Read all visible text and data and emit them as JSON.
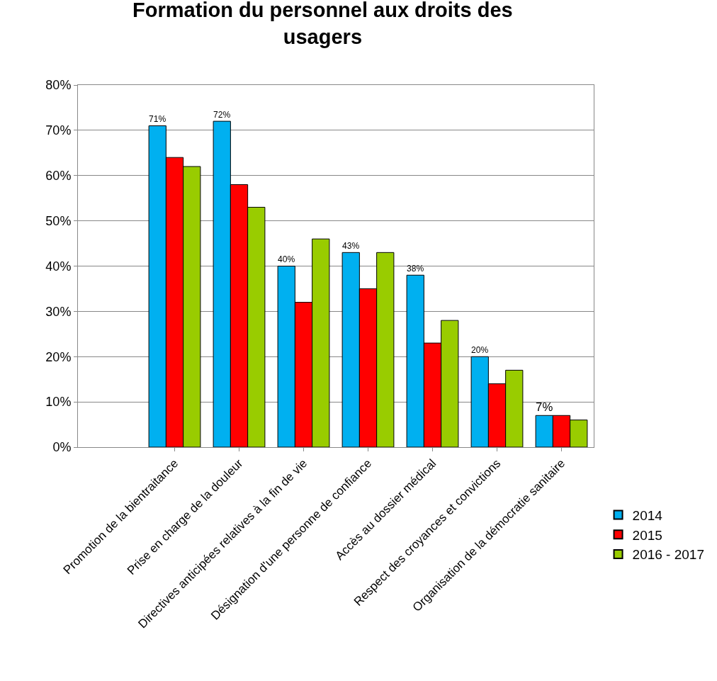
{
  "chart_data": {
    "type": "bar",
    "title": "Formation du personnel aux droits des usagers",
    "categories": [
      null,
      "Promotion de la bientraitance",
      "Prise en charge de la douleur",
      "Directives anticipées relatives à la fin de vie",
      "Désignation d'une personne de confiance",
      "Accès au dossier médical",
      "Respect des croyances et convictions",
      "Organisation de la démocratie sanitaire"
    ],
    "series": [
      {
        "name": "2014",
        "color": "#00b0f0",
        "values": [
          null,
          71,
          72,
          40,
          43,
          38,
          20,
          7
        ],
        "value_labels": [
          null,
          "71%",
          "72%",
          "40%",
          "43%",
          "38%",
          "20%",
          "7%"
        ]
      },
      {
        "name": "2015",
        "color": "#ff0000",
        "values": [
          null,
          64,
          58,
          32,
          35,
          23,
          14,
          7
        ]
      },
      {
        "name": "2016 - 2017",
        "color": "#99cc00",
        "values": [
          null,
          62,
          53,
          46,
          43,
          28,
          17,
          6
        ]
      }
    ],
    "ylim": [
      0,
      80
    ],
    "yticks": [
      {
        "value": 0,
        "label": "0%"
      },
      {
        "value": 10,
        "label": "10%"
      },
      {
        "value": 20,
        "label": "20%"
      },
      {
        "value": 30,
        "label": "30%"
      },
      {
        "value": 40,
        "label": "40%"
      },
      {
        "value": 50,
        "label": "50%"
      },
      {
        "value": 60,
        "label": "60%"
      },
      {
        "value": 70,
        "label": "70%"
      },
      {
        "value": 80,
        "label": "80%"
      }
    ],
    "grid": "y",
    "legend": "right"
  }
}
